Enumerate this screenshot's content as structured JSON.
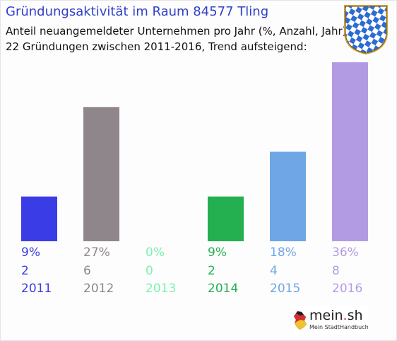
{
  "header": {
    "title": "Gründungsaktivität im Raum 84577 Tling",
    "subtitle_1": "Anteil neuangemeldeter Unternehmen pro Jahr (%, Anzahl, Jahr)",
    "subtitle_2": "22 Gründungen zwischen 2011-2016, Trend aufsteigend:"
  },
  "crest": {
    "icon": "bavarian-coat-of-arms-icon"
  },
  "chart_data": {
    "type": "bar",
    "categories": [
      "2011",
      "2012",
      "2013",
      "2014",
      "2015",
      "2016"
    ],
    "values": [
      9,
      27,
      0,
      9,
      18,
      36
    ],
    "counts": [
      2,
      6,
      0,
      2,
      4,
      8
    ],
    "percent_labels": [
      "9%",
      "27%",
      "0%",
      "9%",
      "18%",
      "36%"
    ],
    "count_labels": [
      "2",
      "6",
      "0",
      "2",
      "4",
      "8"
    ],
    "colors": [
      "#3a3de6",
      "#8f868c",
      "#7ef0b0",
      "#24b050",
      "#6ea6e6",
      "#b39be4"
    ],
    "ylim": [
      0,
      36
    ],
    "grid": false,
    "legend": "none"
  },
  "brand": {
    "name_left": "mein",
    "name_dot": ".",
    "name_right": "sh",
    "tagline": "Mein StadtHandbuch",
    "icon": "germany-map-icon"
  }
}
